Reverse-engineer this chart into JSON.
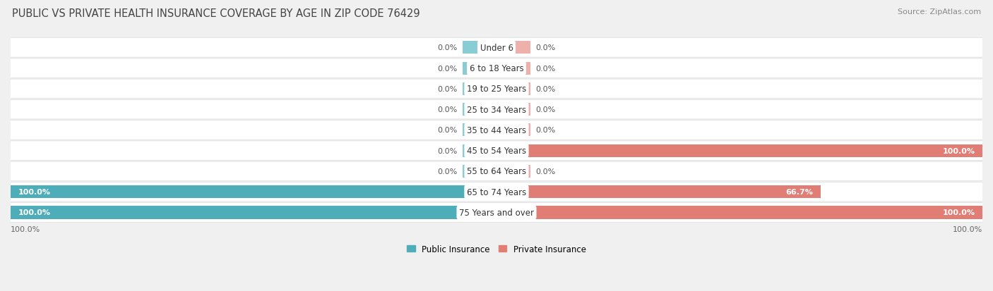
{
  "title": "PUBLIC VS PRIVATE HEALTH INSURANCE COVERAGE BY AGE IN ZIP CODE 76429",
  "source": "Source: ZipAtlas.com",
  "categories": [
    "Under 6",
    "6 to 18 Years",
    "19 to 25 Years",
    "25 to 34 Years",
    "35 to 44 Years",
    "45 to 54 Years",
    "55 to 64 Years",
    "65 to 74 Years",
    "75 Years and over"
  ],
  "public_values": [
    0.0,
    0.0,
    0.0,
    0.0,
    0.0,
    0.0,
    0.0,
    100.0,
    100.0
  ],
  "private_values": [
    0.0,
    0.0,
    0.0,
    0.0,
    0.0,
    100.0,
    0.0,
    66.7,
    100.0
  ],
  "public_color": "#4DADB8",
  "private_color": "#E07E76",
  "public_stub_color": "#89CDD4",
  "private_stub_color": "#EEB0AB",
  "bg_color": "#f0f0f0",
  "row_bg_color": "#ffffff",
  "title_fontsize": 10.5,
  "source_fontsize": 8,
  "bar_label_fontsize": 8,
  "cat_label_fontsize": 8.5,
  "axis_label_fontsize": 8,
  "bar_height": 0.62,
  "stub_size": 7.0,
  "xlim_left": -100,
  "xlim_right": 100,
  "legend_labels": [
    "Public Insurance",
    "Private Insurance"
  ],
  "bottom_left_label": "100.0%",
  "bottom_right_label": "100.0%"
}
